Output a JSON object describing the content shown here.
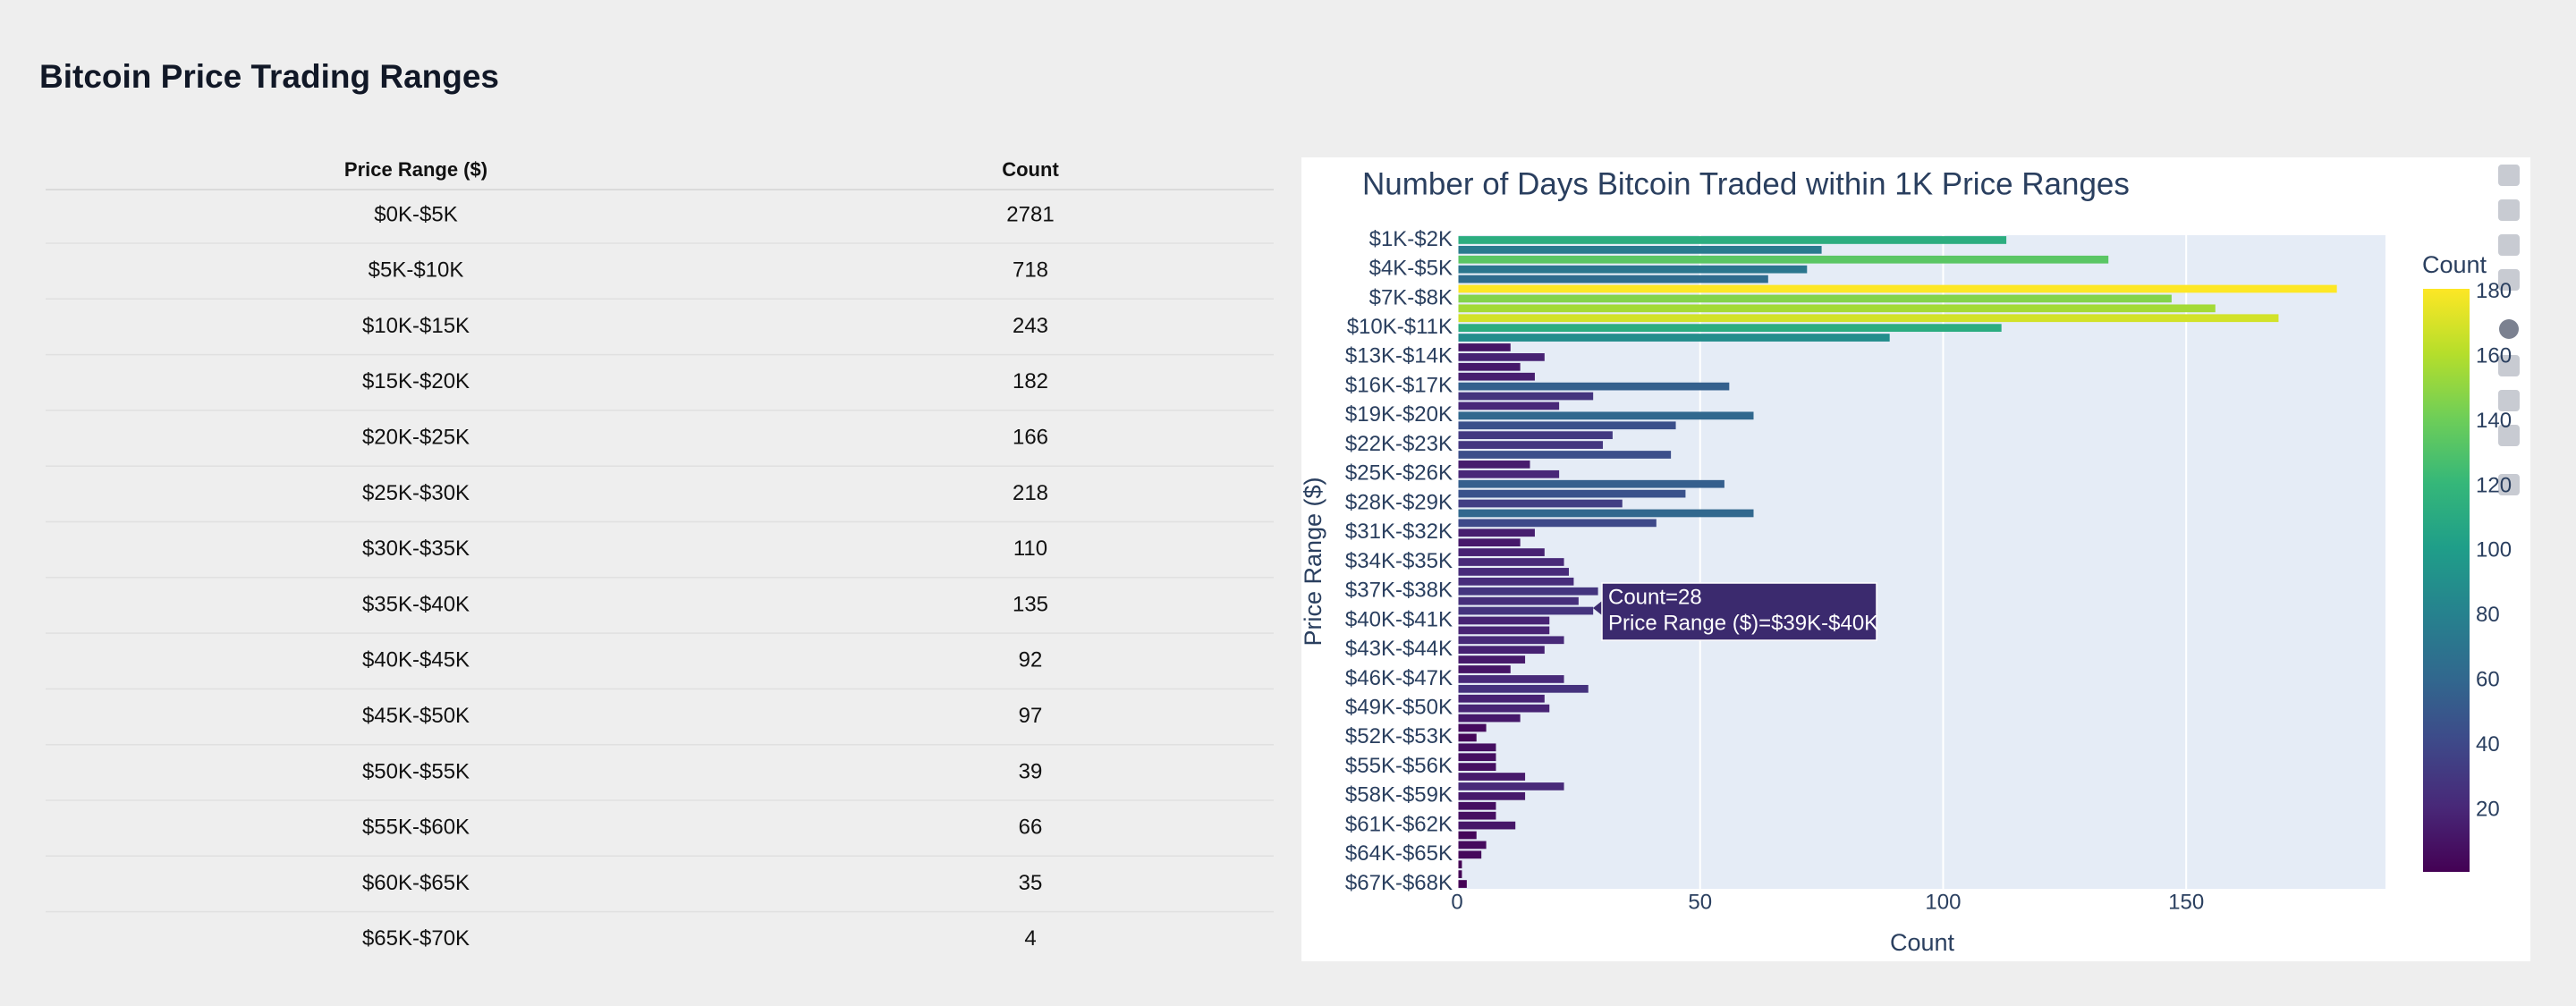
{
  "header": {
    "title": "Bitcoin Price Trading Ranges"
  },
  "table": {
    "columns": [
      "Price Range ($)",
      "Count"
    ],
    "rows": [
      [
        "$0K-$5K",
        "2781"
      ],
      [
        "$5K-$10K",
        "718"
      ],
      [
        "$10K-$15K",
        "243"
      ],
      [
        "$15K-$20K",
        "182"
      ],
      [
        "$20K-$25K",
        "166"
      ],
      [
        "$25K-$30K",
        "218"
      ],
      [
        "$30K-$35K",
        "110"
      ],
      [
        "$35K-$40K",
        "135"
      ],
      [
        "$40K-$45K",
        "92"
      ],
      [
        "$45K-$50K",
        "97"
      ],
      [
        "$50K-$55K",
        "39"
      ],
      [
        "$55K-$60K",
        "66"
      ],
      [
        "$60K-$65K",
        "35"
      ],
      [
        "$65K-$70K",
        "4"
      ]
    ]
  },
  "chart_data": {
    "type": "hbar",
    "title": "Number of Days Bitcoin Traded within 1K Price Ranges",
    "x_label": "Count",
    "y_label": "Price Range ($)",
    "categories": [
      "$1K-$2K",
      null,
      null,
      "$4K-$5K",
      null,
      null,
      "$7K-$8K",
      null,
      null,
      "$10K-$11K",
      null,
      null,
      "$13K-$14K",
      null,
      null,
      "$16K-$17K",
      null,
      null,
      "$19K-$20K",
      null,
      null,
      "$22K-$23K",
      null,
      null,
      "$25K-$26K",
      null,
      null,
      "$28K-$29K",
      null,
      null,
      "$31K-$32K",
      null,
      null,
      "$34K-$35K",
      null,
      null,
      "$37K-$38K",
      null,
      null,
      "$40K-$41K",
      null,
      null,
      "$43K-$44K",
      null,
      null,
      "$46K-$47K",
      null,
      null,
      "$49K-$50K",
      null,
      null,
      "$52K-$53K",
      null,
      null,
      "$55K-$56K",
      null,
      null,
      "$58K-$59K",
      null,
      null,
      "$61K-$62K",
      null,
      null,
      "$64K-$65K",
      null,
      null,
      "$67K-$68K"
    ],
    "values": [
      113,
      75,
      134,
      72,
      64,
      181,
      147,
      156,
      169,
      112,
      89,
      11,
      18,
      13,
      16,
      56,
      28,
      21,
      61,
      45,
      32,
      30,
      44,
      15,
      21,
      55,
      47,
      34,
      61,
      41,
      16,
      13,
      18,
      22,
      23,
      24,
      29,
      25,
      28,
      19,
      19,
      22,
      18,
      14,
      11,
      22,
      27,
      18,
      19,
      13,
      6,
      4,
      8,
      8,
      8,
      14,
      22,
      14,
      8,
      8,
      12,
      4,
      6,
      5,
      1,
      1,
      2
    ],
    "xlim": [
      0,
      191
    ],
    "xticks": [
      0,
      50,
      100,
      150
    ],
    "grid": true,
    "colorscale": [
      "#440154",
      "#482878",
      "#3e4989",
      "#31688e",
      "#26828e",
      "#1f9e89",
      "#35b779",
      "#6ece58",
      "#b5de2b",
      "#fde725"
    ],
    "colorbar": {
      "title": "Count",
      "lim": [
        1,
        181
      ],
      "ticks": [
        20,
        40,
        60,
        80,
        100,
        120,
        140,
        160,
        180
      ]
    },
    "hover": [
      "Count=28",
      "Price Range ($)=$39K-$40K"
    ]
  }
}
